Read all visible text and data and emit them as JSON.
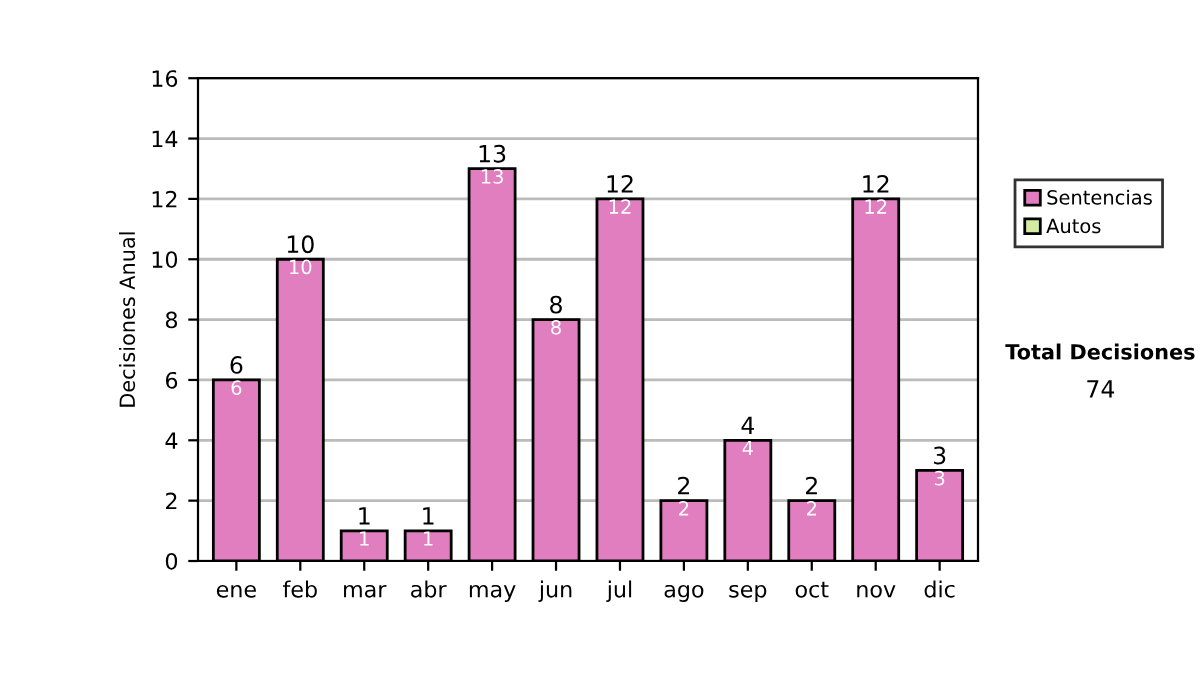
{
  "chart_data": {
    "type": "bar",
    "ylabel": "Decisiones Anual",
    "categories": [
      "ene",
      "feb",
      "mar",
      "abr",
      "may",
      "jun",
      "jul",
      "ago",
      "sep",
      "oct",
      "nov",
      "dic"
    ],
    "series": [
      {
        "name": "Sentencias",
        "color": "#e07ec0",
        "values": [
          6,
          10,
          1,
          1,
          13,
          8,
          12,
          2,
          4,
          2,
          12,
          3
        ],
        "value_labels": [
          "6",
          "10",
          "1",
          "1",
          "13",
          "8",
          "12",
          "2",
          "4",
          "2",
          "12",
          "3"
        ]
      },
      {
        "name": "Autos",
        "color": "#d4eca0",
        "values": [
          null,
          null,
          null,
          null,
          null,
          null,
          null,
          null,
          null,
          null,
          null,
          null
        ]
      }
    ],
    "stacked": true,
    "totals": [
      "6",
      "10",
      "1",
      "1",
      "13",
      "8",
      "12",
      "2",
      "4",
      "2",
      "12",
      "3"
    ],
    "ylim": [
      0,
      16
    ],
    "yticks": [
      0,
      2,
      4,
      6,
      8,
      10,
      12,
      14,
      16
    ],
    "grid": "y",
    "legend": "right",
    "annotations": [
      "Total Decisiones",
      "74"
    ]
  }
}
